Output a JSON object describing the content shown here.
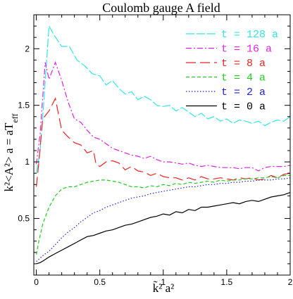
{
  "chart_data": {
    "type": "line",
    "title": "Coulomb gauge A field",
    "xlabel": "k̃² a²",
    "ylabel": "k²<A²> a = aT_eff",
    "ylabel_main": "k²<A²> a  =  aT",
    "ylabel_sub": "eff",
    "xlim": [
      -0.02,
      2.0
    ],
    "ylim": [
      0.0,
      2.3
    ],
    "grid": false,
    "legend_position": "top-right",
    "x_ticks": [
      {
        "value": 0,
        "label": "0"
      },
      {
        "value": 0.5,
        "label": "0.5"
      },
      {
        "value": 1,
        "label": "1"
      },
      {
        "value": 1.5,
        "label": "1.5"
      },
      {
        "value": 2,
        "label": "2"
      }
    ],
    "y_ticks": [
      {
        "value": 0.5,
        "label": "0.5"
      },
      {
        "value": 1,
        "label": "1"
      },
      {
        "value": 1.5,
        "label": "1.5"
      },
      {
        "value": 2,
        "label": "2"
      }
    ],
    "series": [
      {
        "name": "t = 128 a",
        "color": "#33e6e6",
        "dash": "12,3",
        "points": [
          [
            0.0,
            0.9
          ],
          [
            0.03,
            1.1
          ],
          [
            0.06,
            1.55
          ],
          [
            0.1,
            2.2
          ],
          [
            0.14,
            2.12
          ],
          [
            0.2,
            2.02
          ],
          [
            0.26,
            2.02
          ],
          [
            0.32,
            1.9
          ],
          [
            0.38,
            1.85
          ],
          [
            0.44,
            1.78
          ],
          [
            0.5,
            1.76
          ],
          [
            0.55,
            1.68
          ],
          [
            0.6,
            1.72
          ],
          [
            0.65,
            1.65
          ],
          [
            0.7,
            1.6
          ],
          [
            0.75,
            1.62
          ],
          [
            0.8,
            1.55
          ],
          [
            0.85,
            1.58
          ],
          [
            0.9,
            1.55
          ],
          [
            0.95,
            1.5
          ],
          [
            1.0,
            1.49
          ],
          [
            1.05,
            1.5
          ],
          [
            1.1,
            1.45
          ],
          [
            1.15,
            1.48
          ],
          [
            1.2,
            1.44
          ],
          [
            1.25,
            1.4
          ],
          [
            1.3,
            1.43
          ],
          [
            1.35,
            1.38
          ],
          [
            1.4,
            1.4
          ],
          [
            1.45,
            1.36
          ],
          [
            1.5,
            1.38
          ],
          [
            1.55,
            1.34
          ],
          [
            1.6,
            1.37
          ],
          [
            1.65,
            1.36
          ],
          [
            1.7,
            1.34
          ],
          [
            1.75,
            1.36
          ],
          [
            1.8,
            1.32
          ],
          [
            1.85,
            1.35
          ],
          [
            1.9,
            1.37
          ],
          [
            1.95,
            1.36
          ],
          [
            2.0,
            1.4
          ]
        ]
      },
      {
        "name": "t = 16 a",
        "color": "#dd22dd",
        "dash": "8,3,2,3",
        "points": [
          [
            0.0,
            0.98
          ],
          [
            0.03,
            1.25
          ],
          [
            0.07,
            1.88
          ],
          [
            0.1,
            1.73
          ],
          [
            0.15,
            1.88
          ],
          [
            0.2,
            1.72
          ],
          [
            0.25,
            1.53
          ],
          [
            0.3,
            1.38
          ],
          [
            0.35,
            1.35
          ],
          [
            0.4,
            1.28
          ],
          [
            0.45,
            1.22
          ],
          [
            0.5,
            1.2
          ],
          [
            0.55,
            1.16
          ],
          [
            0.6,
            1.12
          ],
          [
            0.65,
            1.1
          ],
          [
            0.7,
            1.08
          ],
          [
            0.75,
            1.06
          ],
          [
            0.8,
            1.05
          ],
          [
            0.85,
            1.03
          ],
          [
            0.9,
            1.05
          ],
          [
            0.95,
            1.02
          ],
          [
            1.0,
            1.0
          ],
          [
            1.05,
            1.0
          ],
          [
            1.1,
            0.99
          ],
          [
            1.15,
            0.98
          ],
          [
            1.2,
            0.99
          ],
          [
            1.25,
            0.97
          ],
          [
            1.3,
            0.96
          ],
          [
            1.35,
            0.97
          ],
          [
            1.4,
            0.96
          ],
          [
            1.45,
            0.95
          ],
          [
            1.5,
            0.95
          ],
          [
            1.55,
            0.95
          ],
          [
            1.6,
            0.94
          ],
          [
            1.65,
            0.95
          ],
          [
            1.7,
            0.95
          ],
          [
            1.75,
            0.92
          ],
          [
            1.8,
            0.95
          ],
          [
            1.85,
            0.96
          ],
          [
            1.9,
            0.96
          ],
          [
            1.95,
            0.96
          ],
          [
            2.0,
            0.97
          ]
        ]
      },
      {
        "name": "t = 8 a",
        "color": "#ee2222",
        "dash": "14,6",
        "points": [
          [
            0.0,
            0.78
          ],
          [
            0.02,
            1.0
          ],
          [
            0.05,
            1.38
          ],
          [
            0.1,
            1.45
          ],
          [
            0.15,
            1.56
          ],
          [
            0.2,
            1.28
          ],
          [
            0.25,
            1.22
          ],
          [
            0.3,
            1.17
          ],
          [
            0.35,
            1.15
          ],
          [
            0.4,
            1.08
          ],
          [
            0.45,
            1.1
          ],
          [
            0.47,
            0.98
          ],
          [
            0.5,
            0.96
          ],
          [
            0.55,
            1.0
          ],
          [
            0.6,
            1.01
          ],
          [
            0.65,
            0.99
          ],
          [
            0.7,
            0.93
          ],
          [
            0.75,
            0.96
          ],
          [
            0.8,
            0.92
          ],
          [
            0.85,
            0.91
          ],
          [
            0.9,
            0.88
          ],
          [
            0.95,
            0.9
          ],
          [
            1.0,
            0.87
          ],
          [
            1.05,
            0.86
          ],
          [
            1.1,
            0.86
          ],
          [
            1.15,
            0.84
          ],
          [
            1.2,
            0.86
          ],
          [
            1.25,
            0.84
          ],
          [
            1.3,
            0.87
          ],
          [
            1.35,
            0.85
          ],
          [
            1.4,
            0.85
          ],
          [
            1.45,
            0.86
          ],
          [
            1.5,
            0.85
          ],
          [
            1.55,
            0.84
          ],
          [
            1.6,
            0.86
          ],
          [
            1.65,
            0.85
          ],
          [
            1.7,
            0.86
          ],
          [
            1.75,
            0.84
          ],
          [
            1.8,
            0.85
          ],
          [
            1.85,
            0.88
          ],
          [
            1.9,
            0.86
          ],
          [
            1.95,
            0.89
          ],
          [
            2.0,
            0.9
          ]
        ]
      },
      {
        "name": "t = 4 a",
        "color": "#22cc22",
        "dash": "5,3",
        "points": [
          [
            0.0,
            0.18
          ],
          [
            0.02,
            0.3
          ],
          [
            0.05,
            0.45
          ],
          [
            0.1,
            0.6
          ],
          [
            0.15,
            0.7
          ],
          [
            0.2,
            0.76
          ],
          [
            0.25,
            0.78
          ],
          [
            0.3,
            0.78
          ],
          [
            0.35,
            0.8
          ],
          [
            0.4,
            0.82
          ],
          [
            0.45,
            0.83
          ],
          [
            0.5,
            0.84
          ],
          [
            0.55,
            0.84
          ],
          [
            0.6,
            0.83
          ],
          [
            0.65,
            0.82
          ],
          [
            0.7,
            0.8
          ],
          [
            0.75,
            0.78
          ],
          [
            0.8,
            0.78
          ],
          [
            0.85,
            0.77
          ],
          [
            0.9,
            0.79
          ],
          [
            0.95,
            0.78
          ],
          [
            1.0,
            0.8
          ],
          [
            1.05,
            0.79
          ],
          [
            1.1,
            0.81
          ],
          [
            1.15,
            0.8
          ],
          [
            1.2,
            0.82
          ],
          [
            1.25,
            0.81
          ],
          [
            1.3,
            0.82
          ],
          [
            1.35,
            0.83
          ],
          [
            1.4,
            0.82
          ],
          [
            1.45,
            0.84
          ],
          [
            1.5,
            0.83
          ],
          [
            1.55,
            0.84
          ],
          [
            1.6,
            0.84
          ],
          [
            1.65,
            0.85
          ],
          [
            1.7,
            0.85
          ],
          [
            1.75,
            0.86
          ],
          [
            1.8,
            0.86
          ],
          [
            1.85,
            0.87
          ],
          [
            1.9,
            0.86
          ],
          [
            1.95,
            0.88
          ],
          [
            2.0,
            0.88
          ]
        ]
      },
      {
        "name": "t = 2 a",
        "color": "#2222dd",
        "dash": "1.5,2.5",
        "points": [
          [
            0.0,
            0.12
          ],
          [
            0.03,
            0.15
          ],
          [
            0.06,
            0.18
          ],
          [
            0.1,
            0.21
          ],
          [
            0.15,
            0.27
          ],
          [
            0.2,
            0.33
          ],
          [
            0.25,
            0.38
          ],
          [
            0.3,
            0.42
          ],
          [
            0.35,
            0.47
          ],
          [
            0.4,
            0.51
          ],
          [
            0.45,
            0.55
          ],
          [
            0.5,
            0.57
          ],
          [
            0.55,
            0.6
          ],
          [
            0.6,
            0.62
          ],
          [
            0.65,
            0.64
          ],
          [
            0.7,
            0.66
          ],
          [
            0.75,
            0.68
          ],
          [
            0.8,
            0.69
          ],
          [
            0.85,
            0.7
          ],
          [
            0.9,
            0.72
          ],
          [
            0.95,
            0.73
          ],
          [
            1.0,
            0.74
          ],
          [
            1.05,
            0.75
          ],
          [
            1.1,
            0.76
          ],
          [
            1.15,
            0.77
          ],
          [
            1.2,
            0.78
          ],
          [
            1.25,
            0.78
          ],
          [
            1.3,
            0.79
          ],
          [
            1.35,
            0.8
          ],
          [
            1.4,
            0.8
          ],
          [
            1.45,
            0.81
          ],
          [
            1.5,
            0.81
          ],
          [
            1.55,
            0.82
          ],
          [
            1.6,
            0.82
          ],
          [
            1.65,
            0.83
          ],
          [
            1.7,
            0.83
          ],
          [
            1.75,
            0.84
          ],
          [
            1.8,
            0.84
          ],
          [
            1.85,
            0.84
          ],
          [
            1.9,
            0.85
          ],
          [
            1.95,
            0.85
          ],
          [
            2.0,
            0.86
          ]
        ]
      },
      {
        "name": "t = 0 a",
        "color": "#000000",
        "dash": "",
        "points": [
          [
            0.0,
            0.1
          ],
          [
            0.03,
            0.11
          ],
          [
            0.06,
            0.13
          ],
          [
            0.1,
            0.16
          ],
          [
            0.15,
            0.19
          ],
          [
            0.2,
            0.22
          ],
          [
            0.25,
            0.25
          ],
          [
            0.3,
            0.28
          ],
          [
            0.35,
            0.31
          ],
          [
            0.4,
            0.34
          ],
          [
            0.45,
            0.35
          ],
          [
            0.5,
            0.37
          ],
          [
            0.55,
            0.39
          ],
          [
            0.6,
            0.4
          ],
          [
            0.65,
            0.42
          ],
          [
            0.7,
            0.44
          ],
          [
            0.75,
            0.45
          ],
          [
            0.8,
            0.47
          ],
          [
            0.85,
            0.49
          ],
          [
            0.9,
            0.51
          ],
          [
            0.95,
            0.52
          ],
          [
            1.0,
            0.54
          ],
          [
            1.05,
            0.53
          ],
          [
            1.1,
            0.56
          ],
          [
            1.15,
            0.55
          ],
          [
            1.2,
            0.58
          ],
          [
            1.25,
            0.57
          ],
          [
            1.3,
            0.6
          ],
          [
            1.35,
            0.6
          ],
          [
            1.4,
            0.61
          ],
          [
            1.45,
            0.62
          ],
          [
            1.5,
            0.63
          ],
          [
            1.55,
            0.64
          ],
          [
            1.6,
            0.63
          ],
          [
            1.65,
            0.65
          ],
          [
            1.7,
            0.66
          ],
          [
            1.75,
            0.65
          ],
          [
            1.8,
            0.67
          ],
          [
            1.85,
            0.69
          ],
          [
            1.9,
            0.7
          ],
          [
            1.95,
            0.71
          ],
          [
            2.0,
            0.73
          ]
        ]
      }
    ]
  }
}
